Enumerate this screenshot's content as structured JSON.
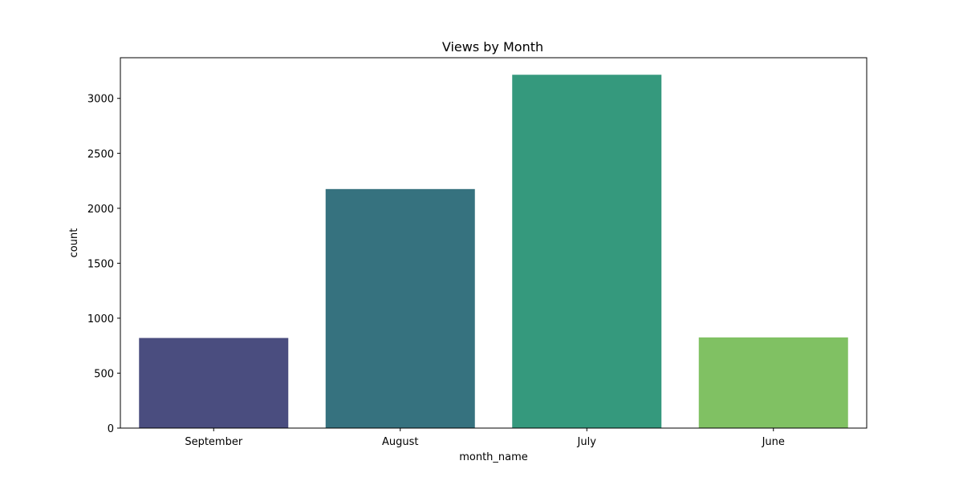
{
  "chart_data": {
    "type": "bar",
    "title": "Views by Month",
    "xlabel": "month_name",
    "ylabel": "count",
    "categories": [
      "September",
      "August",
      "July",
      "June"
    ],
    "values": [
      820,
      2175,
      3215,
      825
    ],
    "colors": [
      "#4a4d7f",
      "#36727f",
      "#35997d",
      "#80c163"
    ],
    "ylim": [
      0,
      3370
    ],
    "yticks": [
      0,
      500,
      1000,
      1500,
      2000,
      2500,
      3000
    ],
    "grid": false,
    "legend": "none"
  }
}
